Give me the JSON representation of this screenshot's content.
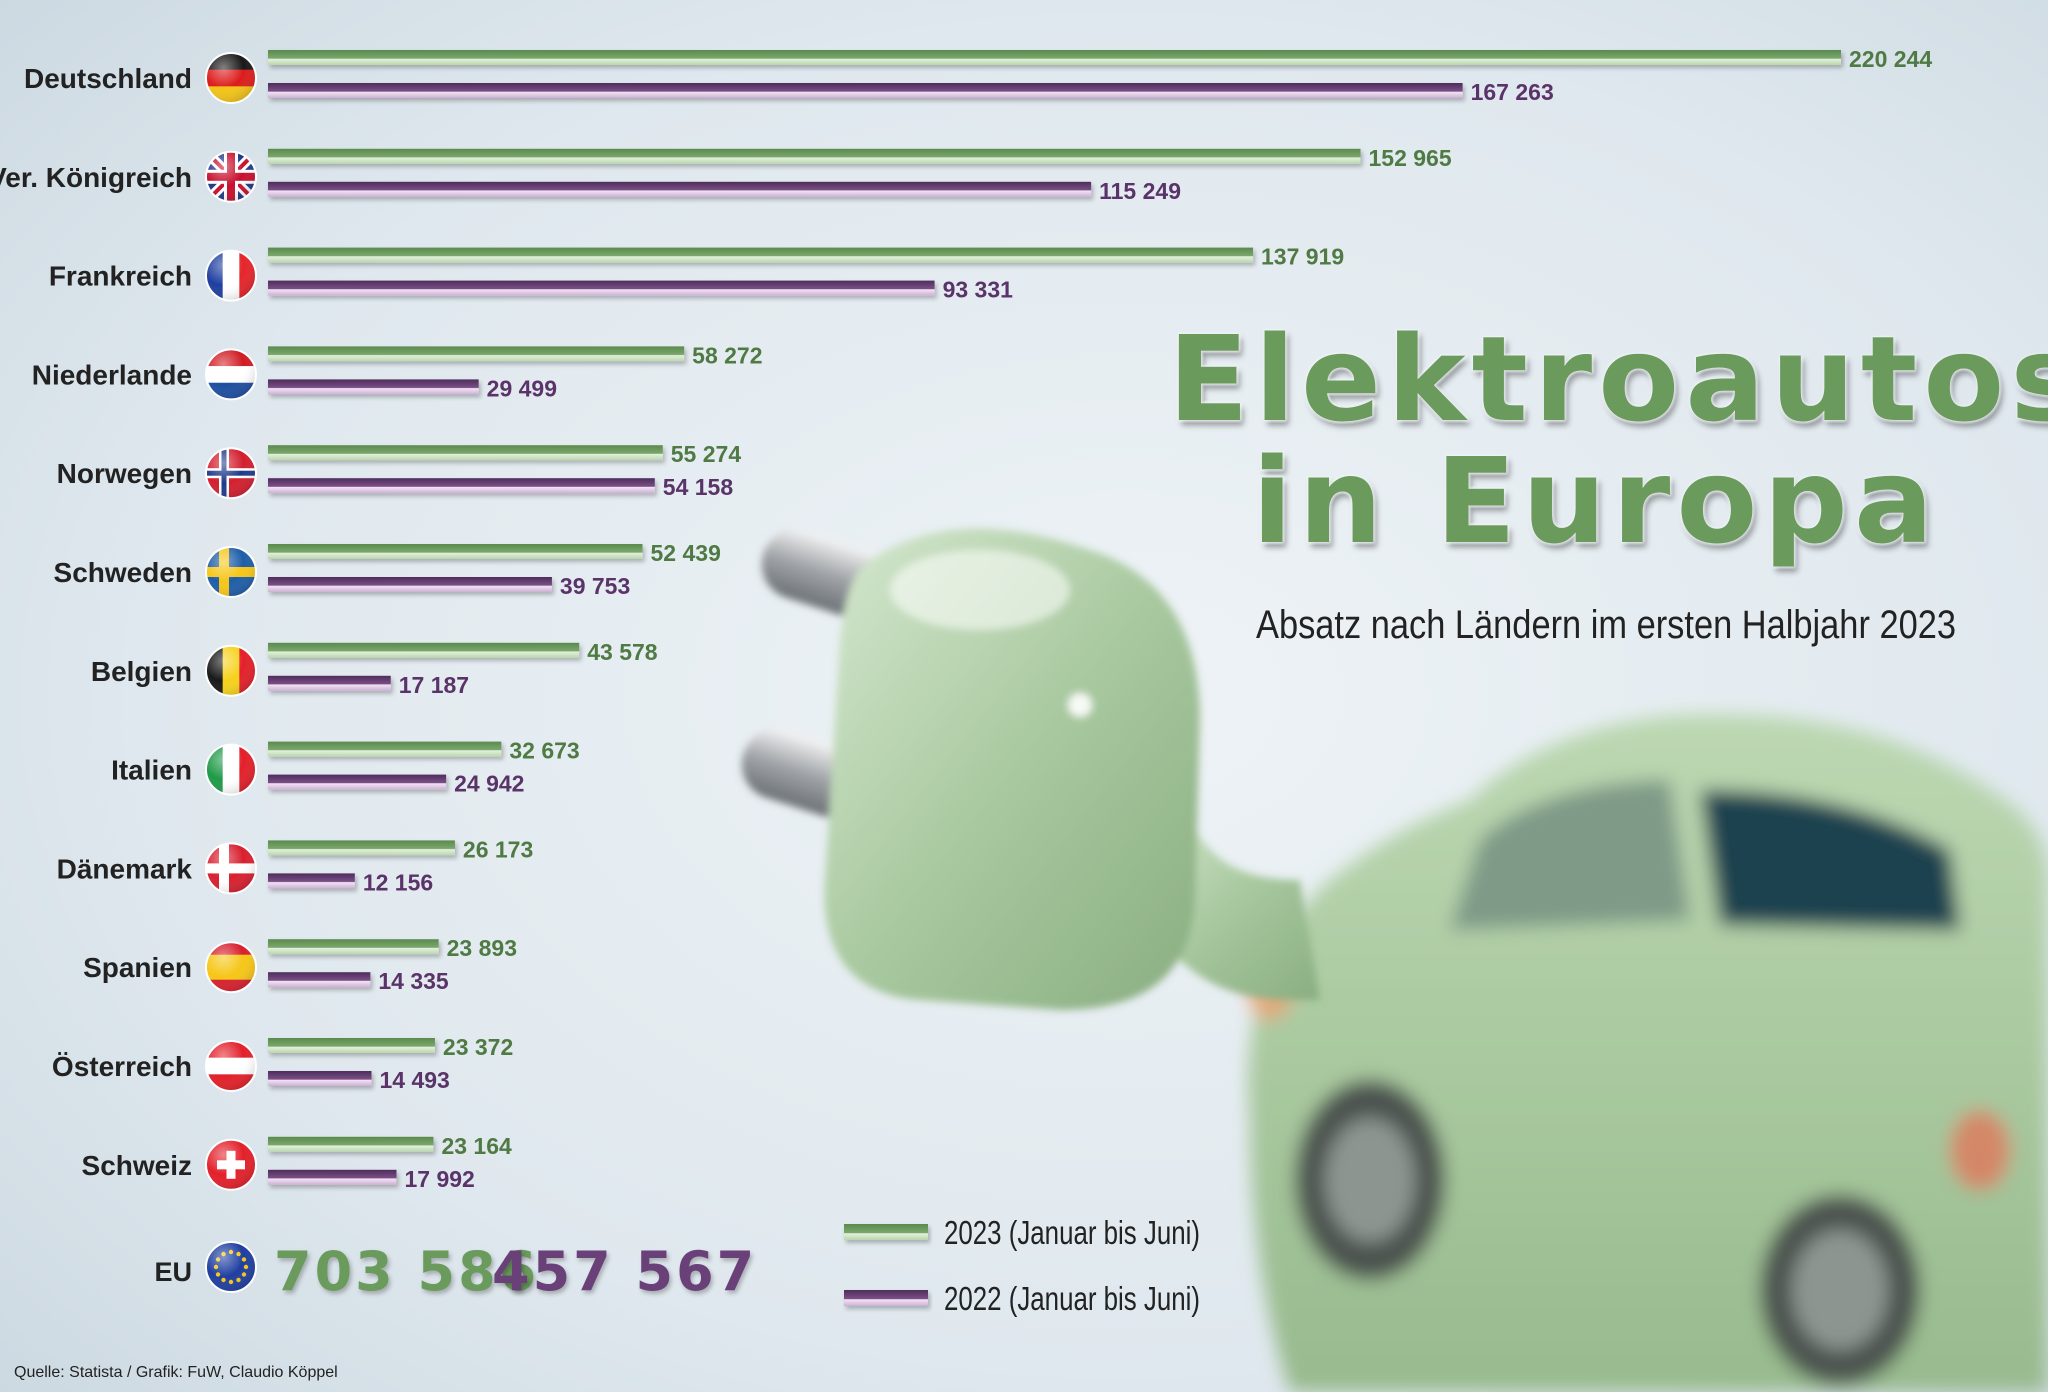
{
  "title": [
    "Elektroautos",
    "in Europa"
  ],
  "subtitle": "Absatz nach Ländern im ersten Halbjahr 2023",
  "source": "Quelle: Statista / Grafik: FuW, Claudio Köppel",
  "colors": {
    "series_2023": "#6a9a5c",
    "series_2022": "#6b3f78",
    "label_2023": "#4f7a43",
    "label_2022": "#5a3468",
    "background": "#dde7ee"
  },
  "chart_data": {
    "type": "bar",
    "orientation": "horizontal",
    "categories": [
      "Deutschland",
      "Ver. Königreich",
      "Frankreich",
      "Niederlande",
      "Norwegen",
      "Schweden",
      "Belgien",
      "Italien",
      "Dänemark",
      "Spanien",
      "Österreich",
      "Schweiz"
    ],
    "series": [
      {
        "name": "2023 (Januar bis Juni)",
        "values": [
          220244,
          152965,
          137919,
          58272,
          55274,
          52439,
          43578,
          32673,
          26173,
          23893,
          23372,
          23164
        ],
        "labels": [
          "220 244",
          "152 965",
          "137 919",
          "58 272",
          "55 274",
          "52 439",
          "43 578",
          "32 673",
          "26 173",
          "23 893",
          "23 372",
          "23 164"
        ]
      },
      {
        "name": "2022 (Januar bis Juni)",
        "values": [
          167263,
          115249,
          93331,
          29499,
          54158,
          39753,
          17187,
          24942,
          12156,
          14335,
          14493,
          17992
        ],
        "labels": [
          "167 263",
          "115 249",
          "93 331",
          "29 499",
          "54 158",
          "39 753",
          "17 187",
          "24 942",
          "12 156",
          "14 335",
          "14 493",
          "17 992"
        ]
      }
    ],
    "flag_icons": [
      "germany-flag-icon",
      "uk-flag-icon",
      "france-flag-icon",
      "netherlands-flag-icon",
      "norway-flag-icon",
      "sweden-flag-icon",
      "belgium-flag-icon",
      "italy-flag-icon",
      "denmark-flag-icon",
      "spain-flag-icon",
      "austria-flag-icon",
      "switzerland-flag-icon"
    ],
    "total": {
      "label": "EU",
      "icon": "eu-flag-icon",
      "value_2023": 703586,
      "value_2022": 457567,
      "text_2023": "703 586",
      "text_2022": "457 567"
    },
    "legend_placement": "bottom-center",
    "grid": false,
    "xlim": [
      0,
      220244
    ]
  }
}
